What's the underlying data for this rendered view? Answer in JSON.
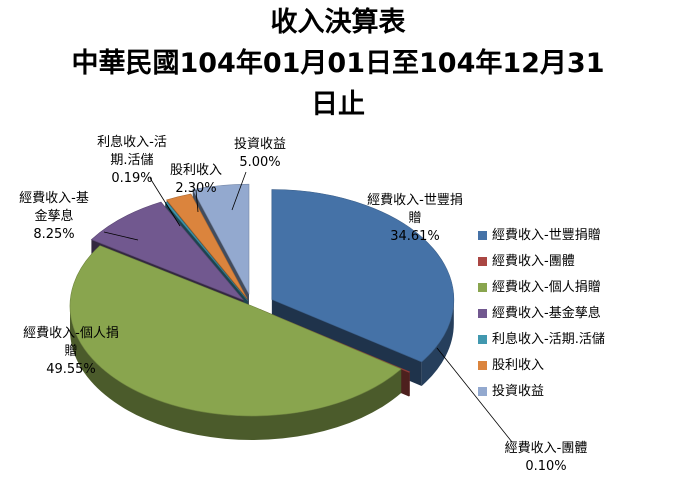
{
  "chart_data": {
    "type": "pie",
    "title_lines": [
      "收入決算表",
      "中華民國104年01月01日至104年12月31",
      "日止"
    ],
    "slices": [
      {
        "name": "經費收入-世豐捐贈",
        "value": 34.61,
        "label_lines": [
          "經費收入-世豐捐",
          "贈"
        ],
        "value_text": "34.61%",
        "color": "#4572A7"
      },
      {
        "name": "經費收入-團體",
        "value": 0.1,
        "label_lines": [
          "經費收入-團體"
        ],
        "value_text": "0.10%",
        "color": "#AA4643"
      },
      {
        "name": "經費收入-個人捐贈",
        "value": 49.55,
        "label_lines": [
          "經費收入-個人捐",
          "贈"
        ],
        "value_text": "49.55%",
        "color": "#89A54E"
      },
      {
        "name": "經費收入-基金孳息",
        "value": 8.25,
        "label_lines": [
          "經費收入-基",
          "金孳息"
        ],
        "value_text": "8.25%",
        "color": "#71588F"
      },
      {
        "name": "利息收入-活期.活儲",
        "value": 0.19,
        "label_lines": [
          "利息收入-活",
          "期.活儲"
        ],
        "value_text": "0.19%",
        "color": "#4198AF"
      },
      {
        "name": "股利收入",
        "value": 2.3,
        "label_lines": [
          "股利收入"
        ],
        "value_text": "2.30%",
        "color": "#DB843D"
      },
      {
        "name": "投資收益",
        "value": 5.0,
        "label_lines": [
          "投資收益"
        ],
        "value_text": "5.00%",
        "color": "#93A9CF"
      }
    ],
    "legend_placement": "right",
    "exploded": true,
    "style": "3d"
  }
}
